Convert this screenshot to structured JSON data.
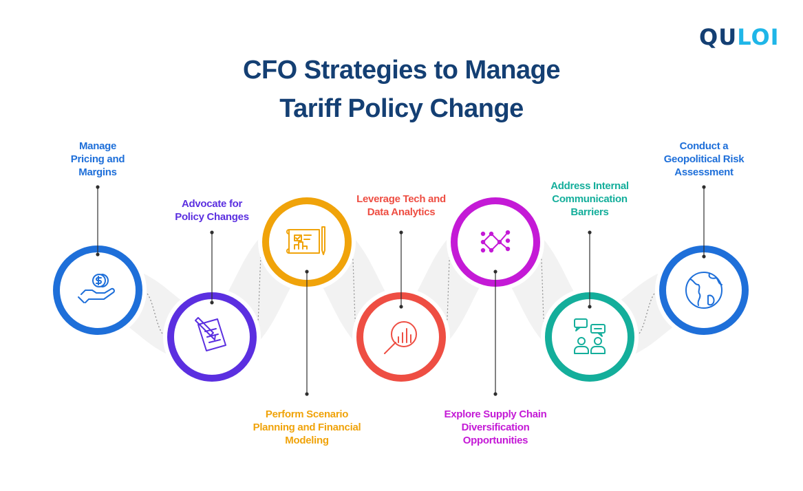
{
  "brand": {
    "logo_part1": "QU",
    "logo_part2": "LOI"
  },
  "title": {
    "line1": "CFO Strategies to Manage",
    "line2": "Tariff Policy Change"
  },
  "colors": {
    "title": "#143f73",
    "blue": "#1e6fd9",
    "purple": "#5b2fe0",
    "orange": "#f0a30a",
    "red": "#ee4e43",
    "magenta": "#c41ad6",
    "teal": "#14ae9b",
    "band": "#f2f2f2",
    "connector": "#2e2e2e"
  },
  "steps": [
    {
      "label_lines": [
        "Manage",
        "Pricing and",
        "Margins"
      ],
      "icon": "money-hand-icon",
      "color": "#1e6fd9"
    },
    {
      "label_lines": [
        "Advocate for",
        "Policy Changes"
      ],
      "icon": "document-pencil-icon",
      "color": "#5b2fe0"
    },
    {
      "label_lines": [
        "Perform Scenario",
        "Planning and Financial",
        "Modeling"
      ],
      "icon": "blueprint-chart-icon",
      "color": "#f0a30a"
    },
    {
      "label_lines": [
        "Leverage Tech and",
        "Data Analytics"
      ],
      "icon": "magnify-chart-icon",
      "color": "#ee4e43"
    },
    {
      "label_lines": [
        "Explore Supply Chain",
        "Diversification",
        "Opportunities"
      ],
      "icon": "network-nodes-icon",
      "color": "#c41ad6"
    },
    {
      "label_lines": [
        "Address Internal",
        "Communication",
        "Barriers"
      ],
      "icon": "chat-people-icon",
      "color": "#14ae9b"
    },
    {
      "label_lines": [
        "Conduct a",
        "Geopolitical Risk",
        "Assessment"
      ],
      "icon": "globe-icon",
      "color": "#1e6fd9"
    }
  ]
}
